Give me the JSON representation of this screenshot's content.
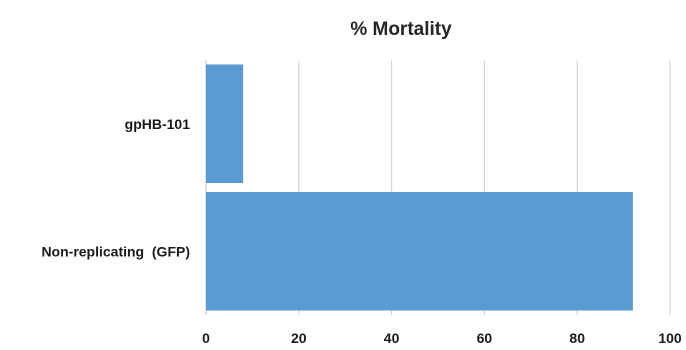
{
  "chart_data": {
    "type": "bar",
    "orientation": "horizontal",
    "title": "% Mortality",
    "categories": [
      "gpHB-101",
      "Non-replicating  (GFP)"
    ],
    "values": [
      8,
      92
    ],
    "xlim": [
      0,
      100
    ],
    "xticks": [
      "0",
      "20",
      "40",
      "60",
      "80",
      "100"
    ],
    "xlabel": "",
    "ylabel": "",
    "grid": "vertical",
    "legend": "none",
    "bar_color": "#5b9bd5"
  }
}
